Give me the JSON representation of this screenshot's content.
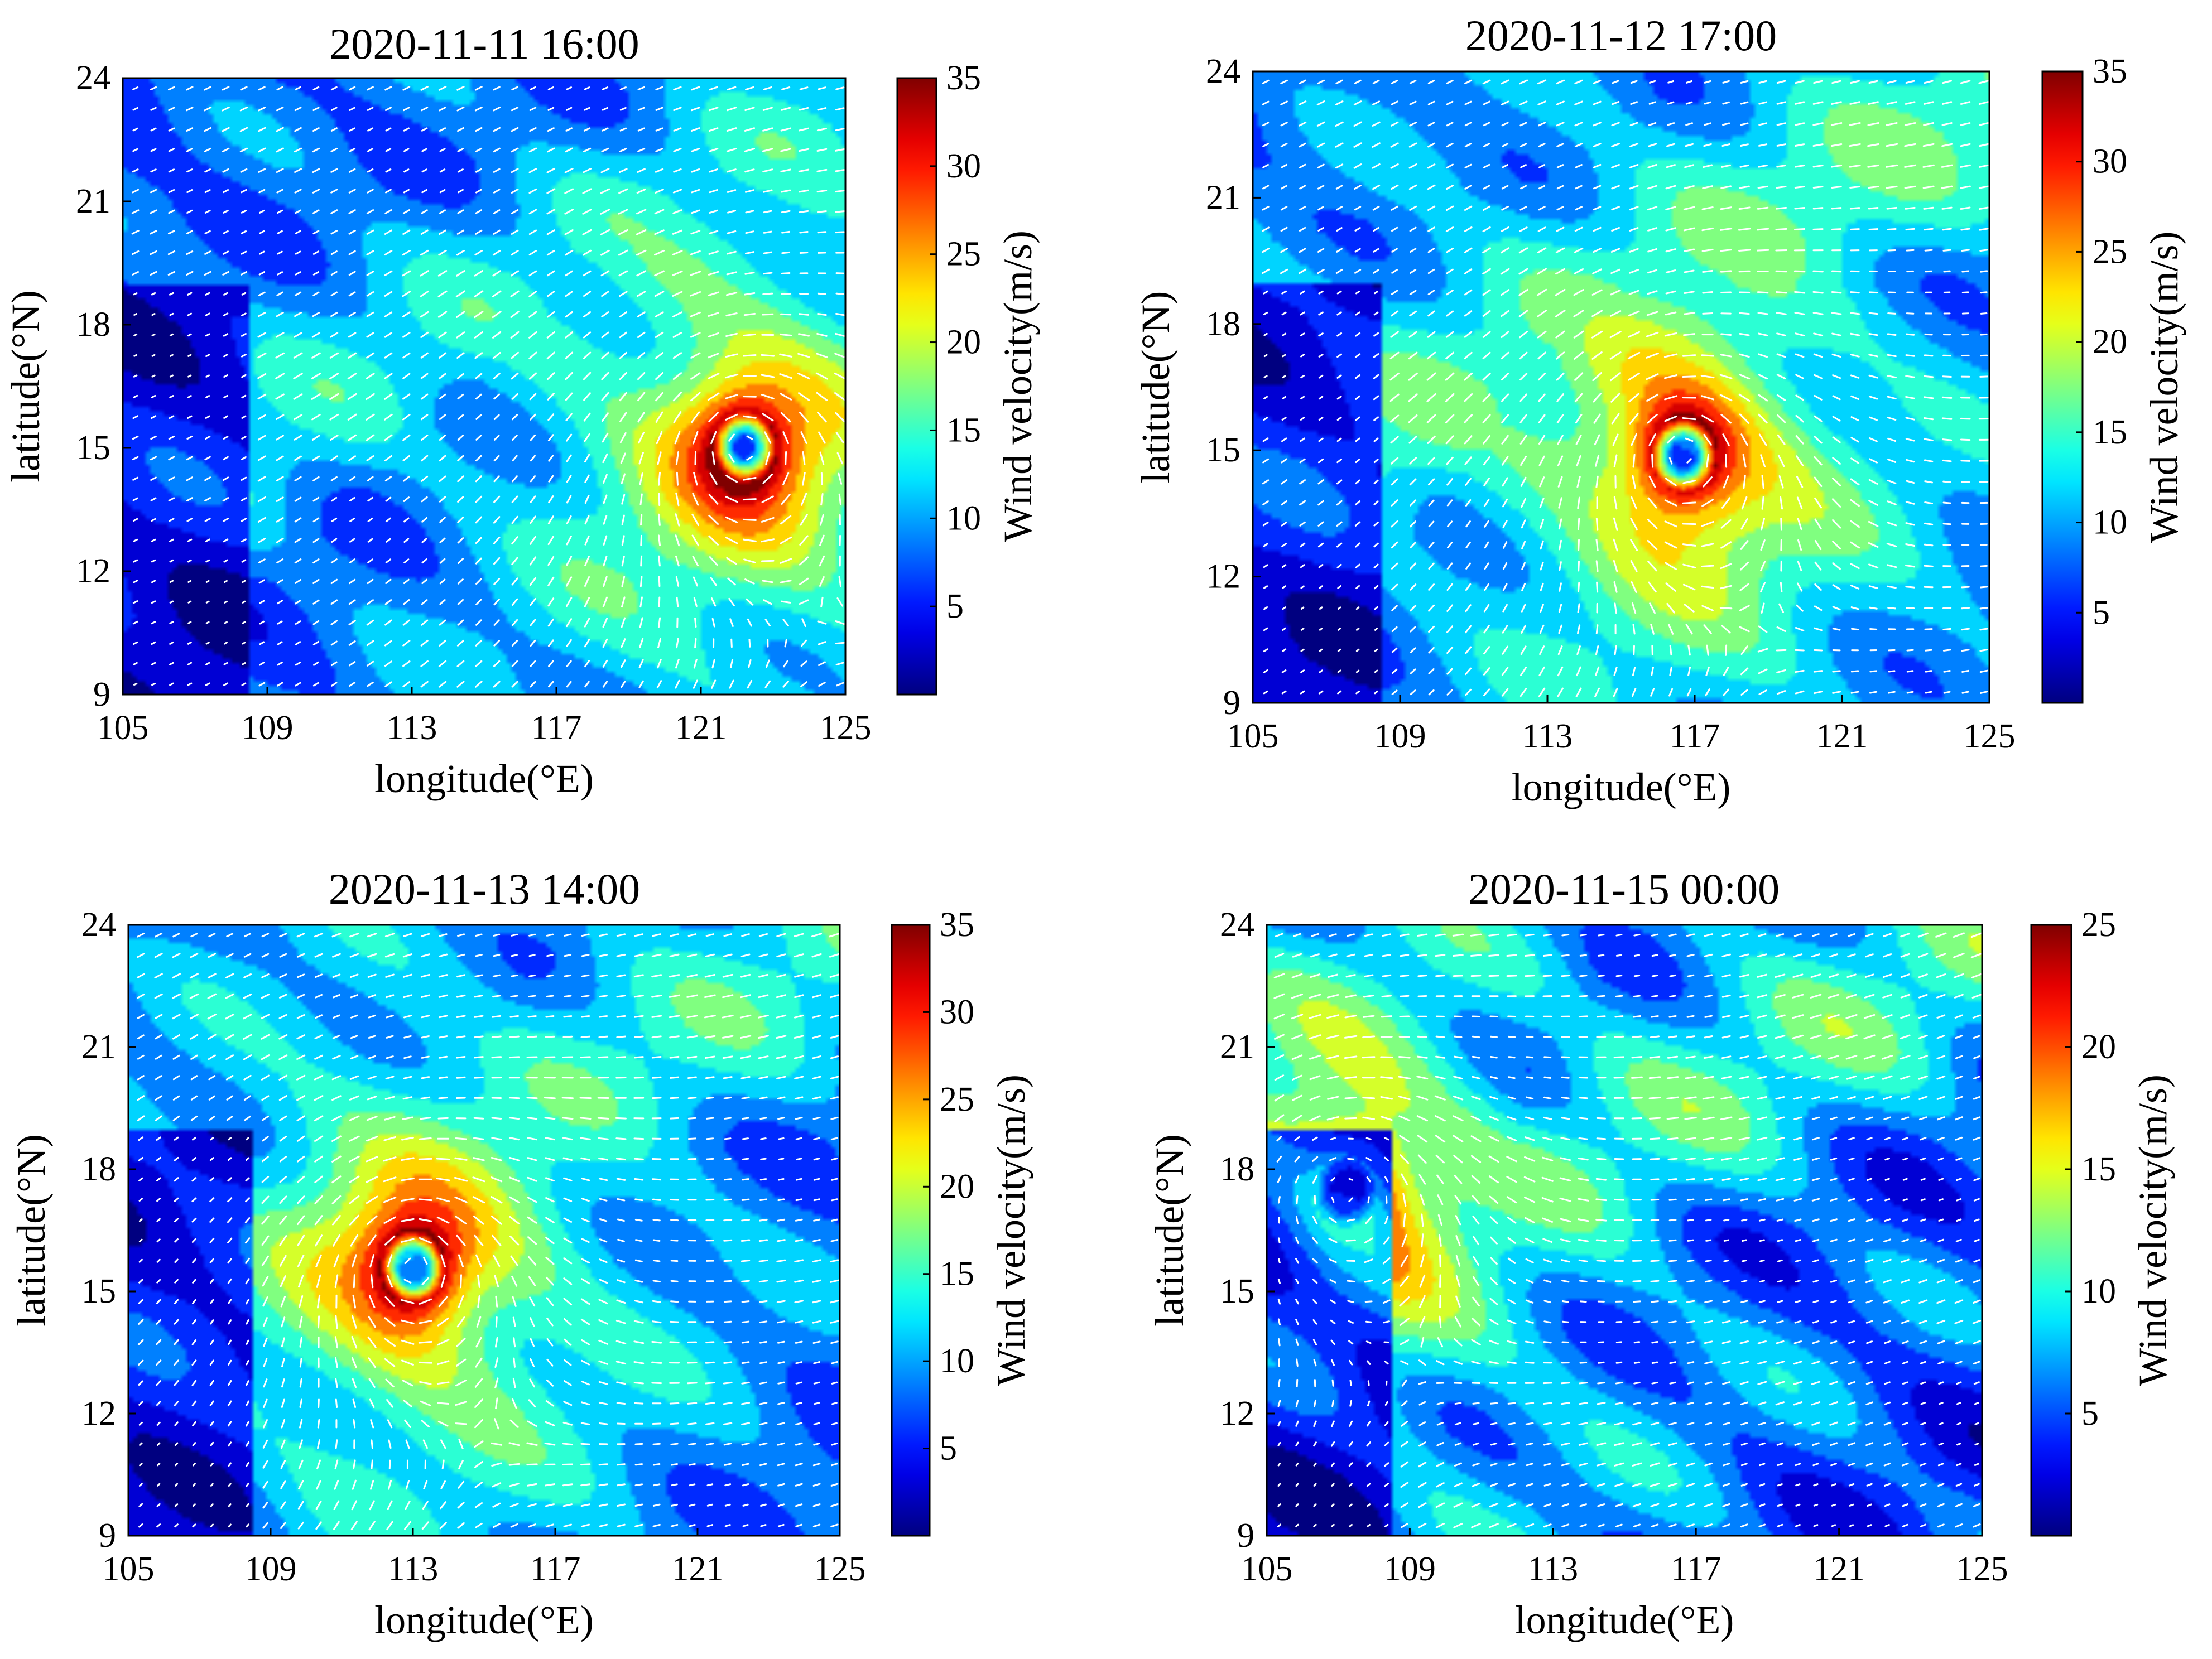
{
  "figure": {
    "colormap": "jet",
    "background": "#ffffff",
    "wind_arrow_color": "#ffffff"
  },
  "chart_data": [
    {
      "type": "heatmap",
      "title": "2020-11-11 16:00",
      "xlabel": "longitude(°E)",
      "ylabel": "latitude(°N)",
      "colorbar_label": "Wind velocity(m/s)",
      "xlim": [
        105,
        125
      ],
      "ylim": [
        9,
        24
      ],
      "xticks": [
        "105",
        "109",
        "113",
        "117",
        "121",
        "125"
      ],
      "yticks": [
        "9",
        "12",
        "15",
        "18",
        "21",
        "24"
      ],
      "colorbar_range": [
        0,
        35
      ],
      "colorbar_ticks": [
        "5",
        "10",
        "15",
        "20",
        "25",
        "30",
        "35"
      ],
      "cyclone_center": {
        "lon": 122.2,
        "lat": 15.0
      },
      "max_wind": 35,
      "background_wind": 10
    },
    {
      "type": "heatmap",
      "title": "2020-11-12 17:00",
      "xlabel": "longitude(°E)",
      "ylabel": "latitude(°N)",
      "colorbar_label": "Wind velocity(m/s)",
      "xlim": [
        105,
        125
      ],
      "ylim": [
        9,
        24
      ],
      "xticks": [
        "105",
        "109",
        "113",
        "117",
        "121",
        "125"
      ],
      "yticks": [
        "9",
        "12",
        "15",
        "18",
        "21",
        "24"
      ],
      "colorbar_range": [
        0,
        35
      ],
      "colorbar_ticks": [
        "5",
        "10",
        "15",
        "20",
        "25",
        "30",
        "35"
      ],
      "cyclone_center": {
        "lon": 116.7,
        "lat": 14.9
      },
      "max_wind": 35,
      "background_wind": 12
    },
    {
      "type": "heatmap",
      "title": "2020-11-13 14:00",
      "xlabel": "longitude(°E)",
      "ylabel": "latitude(°N)",
      "colorbar_label": "Wind velocity(m/s)",
      "xlim": [
        105,
        125
      ],
      "ylim": [
        9,
        24
      ],
      "xticks": [
        "105",
        "109",
        "113",
        "117",
        "121",
        "125"
      ],
      "yticks": [
        "9",
        "12",
        "15",
        "18",
        "21",
        "24"
      ],
      "colorbar_range": [
        0,
        35
      ],
      "colorbar_ticks": [
        "5",
        "10",
        "15",
        "20",
        "25",
        "30",
        "35"
      ],
      "cyclone_center": {
        "lon": 113.0,
        "lat": 15.6
      },
      "max_wind": 35,
      "background_wind": 11
    },
    {
      "type": "heatmap",
      "title": "2020-11-15 00:00",
      "xlabel": "longitude(°E)",
      "ylabel": "latitude(°N)",
      "colorbar_label": "Wind velocity(m/s)",
      "xlim": [
        105,
        125
      ],
      "ylim": [
        9,
        24
      ],
      "xticks": [
        "105",
        "109",
        "113",
        "117",
        "121",
        "125"
      ],
      "yticks": [
        "9",
        "12",
        "15",
        "18",
        "21",
        "24"
      ],
      "colorbar_range": [
        0,
        25
      ],
      "colorbar_ticks": [
        "5",
        "10",
        "15",
        "20",
        "25"
      ],
      "cyclone_center": {
        "lon": 107.2,
        "lat": 17.4
      },
      "max_wind": 25,
      "background_wind": 8
    }
  ]
}
